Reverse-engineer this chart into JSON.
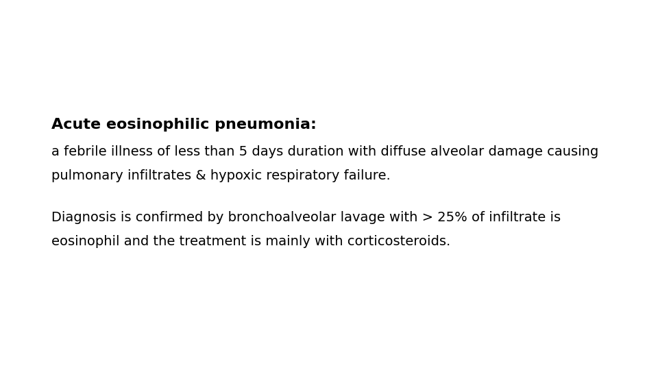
{
  "background_color": "#ffffff",
  "title_text": "Acute eosinophilic pneumonia:",
  "title_fontsize": 16,
  "body_line1": "a febrile illness of less than 5 days duration with diffuse alveolar damage causing",
  "body_line2": "pulmonary infiltrates & hypoxic respiratory failure.",
  "body_line3": "Diagnosis is confirmed by bronchoalveolar lavage with > 25% of infiltrate is",
  "body_line4": "eosinophil and the treatment is mainly with corticosteroids.",
  "body_fontsize": 14,
  "text_color": "#000000",
  "fig_width": 9.6,
  "fig_height": 5.4,
  "dpi": 100
}
